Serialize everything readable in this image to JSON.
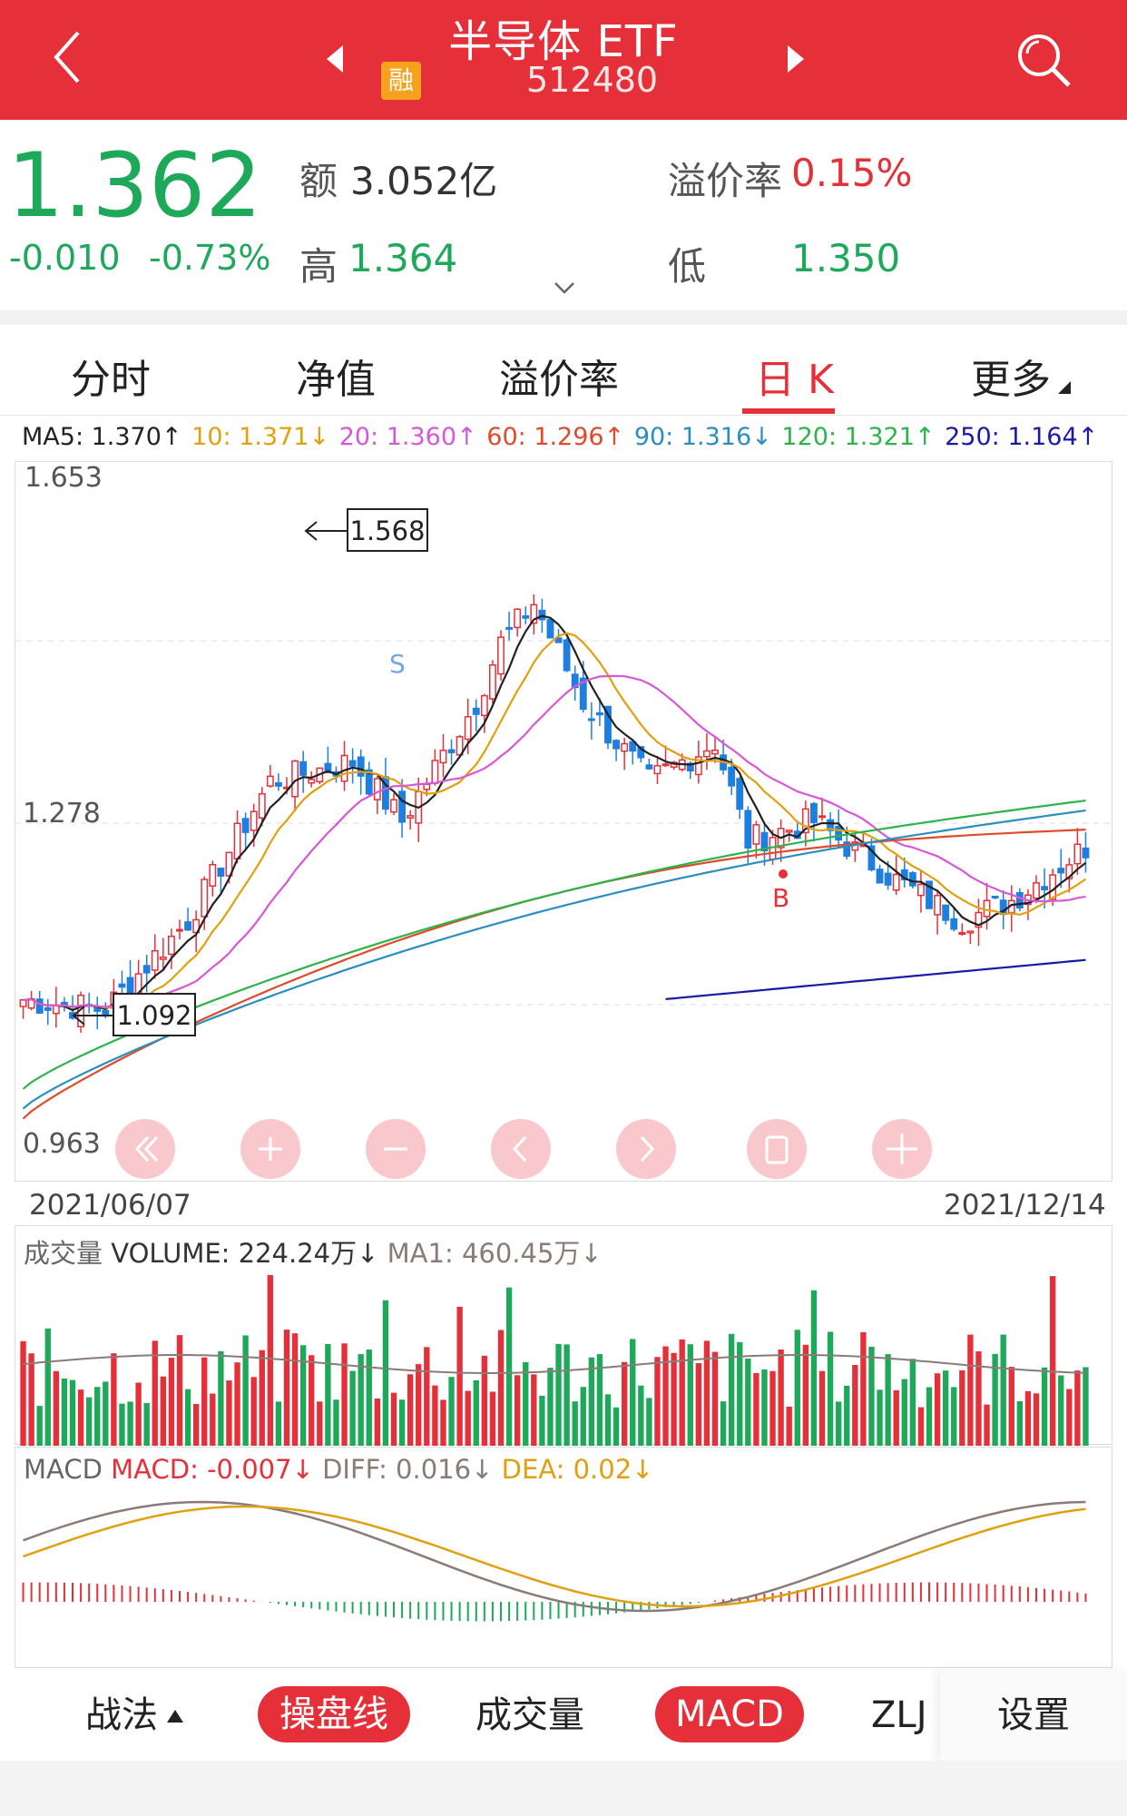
{
  "header": {
    "title": "半导体 ETF",
    "code": "512480",
    "badge": "融"
  },
  "quote": {
    "price": "1.362",
    "change": "-0.010",
    "change_pct": "-0.73%",
    "amount_label": "额",
    "amount": "3.052亿",
    "high_label": "高",
    "high": "1.364",
    "premium_label": "溢价率",
    "premium": "0.15%",
    "low_label": "低",
    "low": "1.350"
  },
  "tabs": [
    {
      "label": "分时"
    },
    {
      "label": "净值"
    },
    {
      "label": "溢价率"
    },
    {
      "label": "日 K"
    },
    {
      "label": "更多"
    }
  ],
  "ma_legend": {
    "ma5": "MA5: 1.370↑",
    "ma10": "10: 1.371↓",
    "ma20": "20: 1.360↑",
    "ma60": "60: 1.296↑",
    "ma90": "90: 1.316↓",
    "ma120": "120: 1.321↑",
    "ma250": "250: 1.164↑"
  },
  "colors": {
    "red": "#e5303a",
    "green": "#1ea85a",
    "ma5": "#222222",
    "ma10": "#e0a010",
    "ma20": "#d857d8",
    "ma60": "#e04a2a",
    "ma90": "#2a8fbf",
    "ma120": "#2cb34a",
    "ma250": "#1a1aa8"
  },
  "chart_data": [
    {
      "type": "candlestick",
      "ylim": [
        0.963,
        1.653
      ],
      "y_ticks": [
        "1.653",
        "1.278",
        "0.963"
      ],
      "x_start": "2021/06/07",
      "x_end": "2021/12/14",
      "annotations": {
        "high_mark": "1.568",
        "low_mark": "1.092",
        "sell_mark": "S",
        "buy_mark": "B"
      }
    },
    {
      "type": "bar",
      "title": "成交量",
      "volume_label": "VOLUME: 224.24万↓",
      "ma1_label": "MA1: 460.45万↓"
    },
    {
      "type": "line",
      "title": "MACD",
      "macd_label": "MACD: -0.007↓",
      "diff_label": "DIFF: 0.016↓",
      "dea_label": "DEA: 0.02↓"
    }
  ],
  "bottom_tabs": {
    "zhanfa": "战法",
    "caopanxian": "操盘线",
    "volume": "成交量",
    "macd": "MACD",
    "zlj": "ZLJ",
    "settings": "设置"
  }
}
